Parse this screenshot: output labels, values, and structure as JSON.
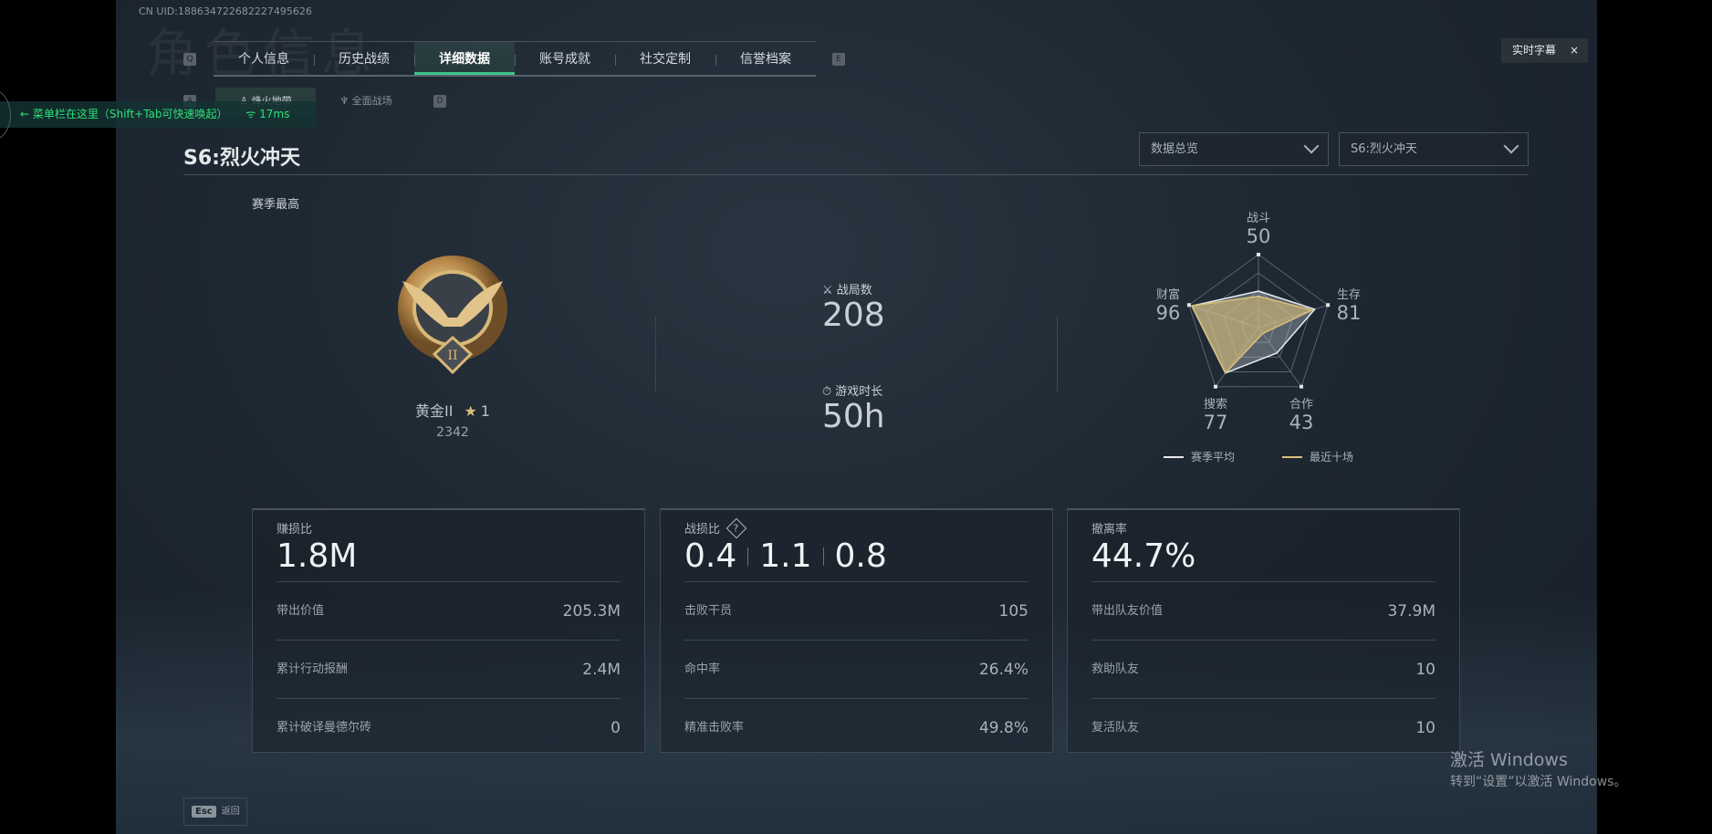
{
  "uid": "CN UID:1886347226822274956​26",
  "bg_title": "角色信息",
  "keys": {
    "prev_tab": "Q",
    "next_tab": "E",
    "prev_sub": "A",
    "next_sub": "D",
    "esc": "Esc"
  },
  "tabs": [
    {
      "label": "个人信息"
    },
    {
      "label": "历史战绩"
    },
    {
      "label": "详细数据",
      "active": true
    },
    {
      "label": "账号成就"
    },
    {
      "label": "社交定制"
    },
    {
      "label": "信誉档案"
    }
  ],
  "subtabs": [
    {
      "label": "烽火地带",
      "icon": "helmet-icon",
      "active": true
    },
    {
      "label": "全面战场",
      "icon": "wings-icon"
    }
  ],
  "overlay": {
    "hint": "菜单栏在这里（Shift+Tab可快速唤起）",
    "ping": "17ms",
    "hint_color": "#2ee07a"
  },
  "caption_button": {
    "label": "实时字幕",
    "close": "×"
  },
  "season_title": "S6:烈火冲天",
  "dropdowns": [
    {
      "value": "数据总览"
    },
    {
      "value": "S6:烈火冲天"
    }
  ],
  "rank": {
    "section_label": "赛季最高",
    "name": "黄金II",
    "stars": "1",
    "score": "2342",
    "numeral": "II"
  },
  "stats": {
    "matches_label": "战局数",
    "matches": "208",
    "time_label": "游戏时长",
    "time": "50h"
  },
  "radar": {
    "axes": [
      {
        "label": "战斗",
        "value": "50"
      },
      {
        "label": "生存",
        "value": "81"
      },
      {
        "label": "合作",
        "value": "43"
      },
      {
        "label": "搜索",
        "value": "77"
      },
      {
        "label": "财富",
        "value": "96"
      }
    ],
    "series": [
      {
        "name": "赛季平均",
        "color": "#e8ecef",
        "values": [
          50,
          81,
          43,
          77,
          96
        ]
      },
      {
        "name": "最近十场",
        "color": "#d9c07a",
        "values": [
          43,
          77,
          10,
          77,
          96
        ]
      }
    ],
    "max": 100
  },
  "cards": [
    {
      "label": "赚损比",
      "big": [
        "1.8M"
      ],
      "rows": [
        {
          "k": "带出价值",
          "v": "205.3M"
        },
        {
          "k": "累计行动报酬",
          "v": "2.4M"
        },
        {
          "k": "累计破译曼德尔砖",
          "v": "0"
        }
      ]
    },
    {
      "label": "战损比",
      "help": "?",
      "big": [
        "0.4",
        "1.1",
        "0.8"
      ],
      "rows": [
        {
          "k": "击败干员",
          "v": "105"
        },
        {
          "k": "命中率",
          "v": "26.4%"
        },
        {
          "k": "精准击败率",
          "v": "49.8%"
        }
      ]
    },
    {
      "label": "撤离率",
      "big": [
        "44.7%"
      ],
      "rows": [
        {
          "k": "带出队友价值",
          "v": "37.9M"
        },
        {
          "k": "救助队友",
          "v": "10"
        },
        {
          "k": "复活队友",
          "v": "10"
        }
      ]
    }
  ],
  "back_label": "返回",
  "watermark": {
    "line1": "激活 Windows",
    "line2": "转到“设置”以激活 Windows。"
  }
}
